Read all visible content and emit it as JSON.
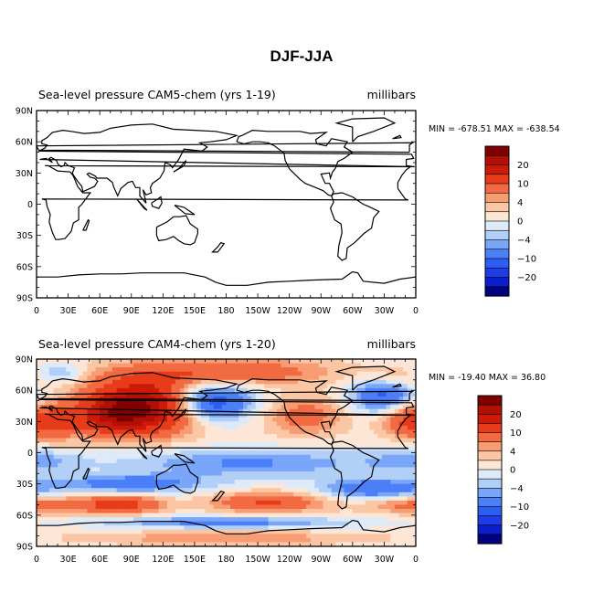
{
  "chart_data": [
    {
      "type": "heatmap",
      "title": "DJF-JJA",
      "panel_title": "Sea-level pressure CAM5-chem (yrs 1-19)",
      "units": "millibars",
      "stats": "MIN = -678.51  MAX = -638.54",
      "x_ticks": [
        "0",
        "30E",
        "60E",
        "90E",
        "120E",
        "150E",
        "180",
        "150W",
        "120W",
        "90W",
        "60W",
        "30W",
        "0"
      ],
      "y_ticks": [
        "90N",
        "60N",
        "30N",
        "0",
        "30S",
        "60S",
        "90S"
      ],
      "colorbar": {
        "labels": [
          "20",
          "10",
          "4",
          "0",
          "-4",
          "-10",
          "-20"
        ],
        "levels": [
          -25,
          -20,
          -15,
          -10,
          -6,
          -4,
          -2,
          0,
          2,
          4,
          6,
          10,
          15,
          20,
          25
        ],
        "colors": [
          "#000080",
          "#0a1ecc",
          "#1e3ce8",
          "#2d5ef2",
          "#4a7ff7",
          "#7aa6fa",
          "#b2cff8",
          "#dfeaf8",
          "#fde6d6",
          "#fbc6a4",
          "#f89c74",
          "#f26a42",
          "#e83b1a",
          "#cc1a0a",
          "#b01005",
          "#800000"
        ]
      },
      "field": "uniform",
      "fill_color": "#ffffff"
    },
    {
      "type": "heatmap",
      "title": "",
      "panel_title": "Sea-level pressure CAM4-chem (yrs 1-20)",
      "units": "millibars",
      "stats": "MIN = -19.40  MAX =  36.80",
      "x_ticks": [
        "0",
        "30E",
        "60E",
        "90E",
        "120E",
        "150E",
        "180",
        "150W",
        "120W",
        "90W",
        "60W",
        "30W",
        "0"
      ],
      "y_ticks": [
        "90N",
        "60N",
        "30N",
        "0",
        "30S",
        "60S",
        "90S"
      ],
      "colorbar": {
        "labels": [
          "20",
          "10",
          "4",
          "0",
          "-4",
          "-10",
          "-20"
        ],
        "levels": [
          -25,
          -20,
          -15,
          -10,
          -6,
          -4,
          -2,
          0,
          2,
          4,
          6,
          10,
          15,
          20,
          25
        ],
        "colors": [
          "#000080",
          "#0a1ecc",
          "#1e3ce8",
          "#2d5ef2",
          "#4a7ff7",
          "#7aa6fa",
          "#b2cff8",
          "#dfeaf8",
          "#fde6d6",
          "#fbc6a4",
          "#f89c74",
          "#f26a42",
          "#e83b1a",
          "#cc1a0a",
          "#b01005",
          "#800000"
        ]
      },
      "field": "slp_difference",
      "features": [
        {
          "lon": 105,
          "lat": 45,
          "amp": 25,
          "slon": 38,
          "slat": 18
        },
        {
          "lon": 75,
          "lat": 35,
          "amp": 10,
          "slon": 20,
          "slat": 12
        },
        {
          "lon": 20,
          "lat": 30,
          "amp": 9,
          "slon": 22,
          "slat": 12
        },
        {
          "lon": 255,
          "lat": 35,
          "amp": 7,
          "slon": 28,
          "slat": 14
        },
        {
          "lon": 350,
          "lat": 32,
          "amp": 8,
          "slon": 18,
          "slat": 12
        },
        {
          "lon": 180,
          "lat": 78,
          "amp": 9,
          "slon": 70,
          "slat": 9
        },
        {
          "lon": 0,
          "lat": 72,
          "amp": 6,
          "slon": 30,
          "slat": 8
        },
        {
          "lon": 162,
          "lat": 48,
          "amp": -18,
          "slon": 28,
          "slat": 13
        },
        {
          "lon": 330,
          "lat": 55,
          "amp": -12,
          "slon": 22,
          "slat": 12
        },
        {
          "lon": 20,
          "lat": 75,
          "amp": -9,
          "slon": 18,
          "slat": 7
        },
        {
          "lon": 200,
          "lat": -10,
          "amp": -7,
          "slon": 90,
          "slat": 10
        },
        {
          "lon": 90,
          "lat": -30,
          "amp": -9,
          "slon": 50,
          "slat": 6
        },
        {
          "lon": 320,
          "lat": -35,
          "amp": -10,
          "slon": 35,
          "slat": 7
        },
        {
          "lon": 0,
          "lat": -8,
          "amp": -5,
          "slon": 30,
          "slat": 8
        },
        {
          "lon": 80,
          "lat": -50,
          "amp": 12,
          "slon": 28,
          "slat": 6
        },
        {
          "lon": 220,
          "lat": -48,
          "amp": 10,
          "slon": 38,
          "slat": 7
        },
        {
          "lon": 0,
          "lat": -50,
          "amp": 7,
          "slon": 35,
          "slat": 6
        },
        {
          "lon": 180,
          "lat": -67,
          "amp": -8,
          "slon": 80,
          "slat": 4
        },
        {
          "lon": 180,
          "lat": -82,
          "amp": 5,
          "slon": 100,
          "slat": 5
        }
      ]
    }
  ]
}
